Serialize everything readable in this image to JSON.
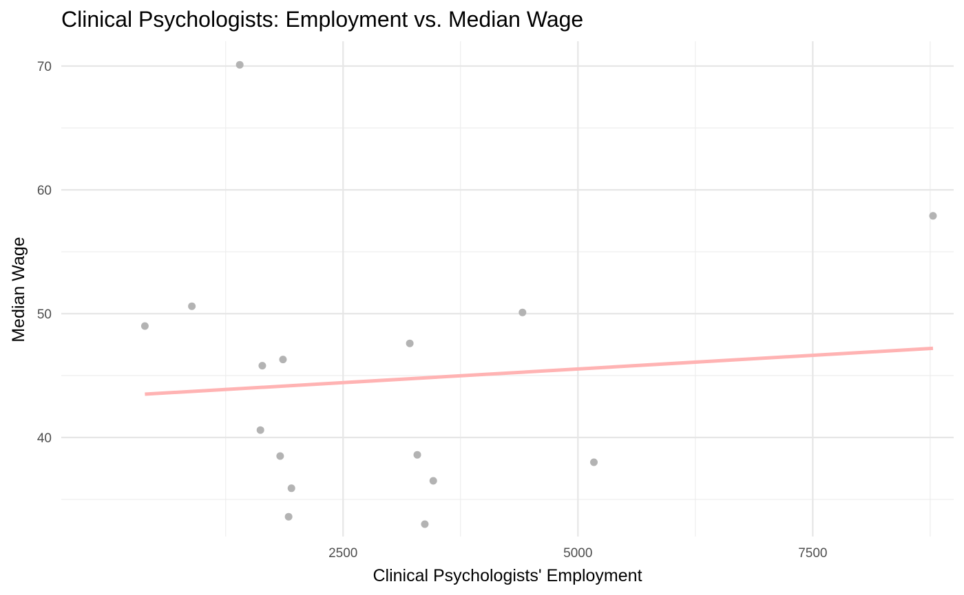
{
  "chart_data": {
    "type": "scatter",
    "title": "Clinical Psychologists: Employment vs. Median Wage",
    "xlabel": "Clinical Psychologists' Employment",
    "ylabel": "Median Wage",
    "xlim": [
      -500,
      9000
    ],
    "ylim": [
      32,
      72
    ],
    "x_major_ticks": [
      2500,
      5000,
      7500
    ],
    "x_minor_ticks": [
      1250,
      3750,
      6250,
      8750
    ],
    "y_major_ticks": [
      40,
      50,
      60,
      70
    ],
    "y_minor_ticks": [
      35,
      45,
      55,
      65
    ],
    "grid": true,
    "point_color": "#b3b3b3",
    "trend_color": "#ffb3b3",
    "points": [
      {
        "x": 390,
        "y": 49.0
      },
      {
        "x": 890,
        "y": 50.6
      },
      {
        "x": 1400,
        "y": 70.1
      },
      {
        "x": 1620,
        "y": 40.6
      },
      {
        "x": 1640,
        "y": 45.8
      },
      {
        "x": 1830,
        "y": 38.5
      },
      {
        "x": 1860,
        "y": 46.3
      },
      {
        "x": 1920,
        "y": 33.6
      },
      {
        "x": 1950,
        "y": 35.9
      },
      {
        "x": 3210,
        "y": 47.6
      },
      {
        "x": 3290,
        "y": 38.6
      },
      {
        "x": 3370,
        "y": 33.0
      },
      {
        "x": 3460,
        "y": 36.5
      },
      {
        "x": 4410,
        "y": 50.1
      },
      {
        "x": 5170,
        "y": 38.0
      },
      {
        "x": 8780,
        "y": 57.9
      }
    ],
    "trendline": {
      "x": [
        390,
        8780
      ],
      "y": [
        43.5,
        47.2
      ]
    }
  }
}
